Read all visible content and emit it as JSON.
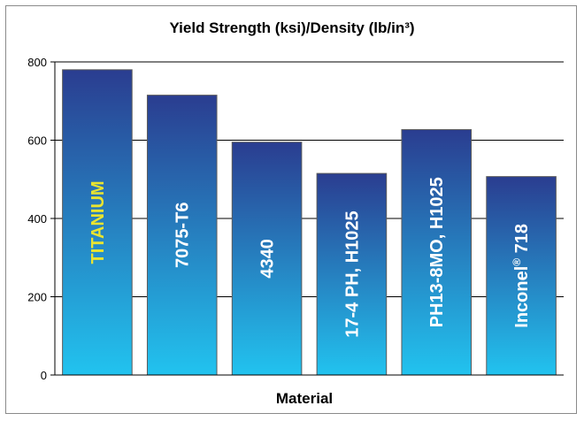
{
  "chart_data": {
    "type": "bar",
    "title": "Yield Strength (ksi)/Density (lb/in³)",
    "xlabel": "Material",
    "ylabel": "",
    "ylim": [
      0,
      800
    ],
    "yticks": [
      0,
      200,
      400,
      600,
      800
    ],
    "grid": true,
    "legend": "none",
    "categories": [
      "TITANIUM",
      "7075-T6",
      "4340",
      "17-4 PH, H1025",
      "PH13-8MO, H1025",
      "Inconel® 718"
    ],
    "values": [
      780,
      715,
      595,
      515,
      627,
      507
    ],
    "label_colors": [
      "#e9e430",
      "#ffffff",
      "#ffffff",
      "#ffffff",
      "#ffffff",
      "#ffffff"
    ],
    "colors": {
      "bar_top": "#2a3d90",
      "bar_bottom": "#22c3ef",
      "grid": "#000000"
    }
  }
}
